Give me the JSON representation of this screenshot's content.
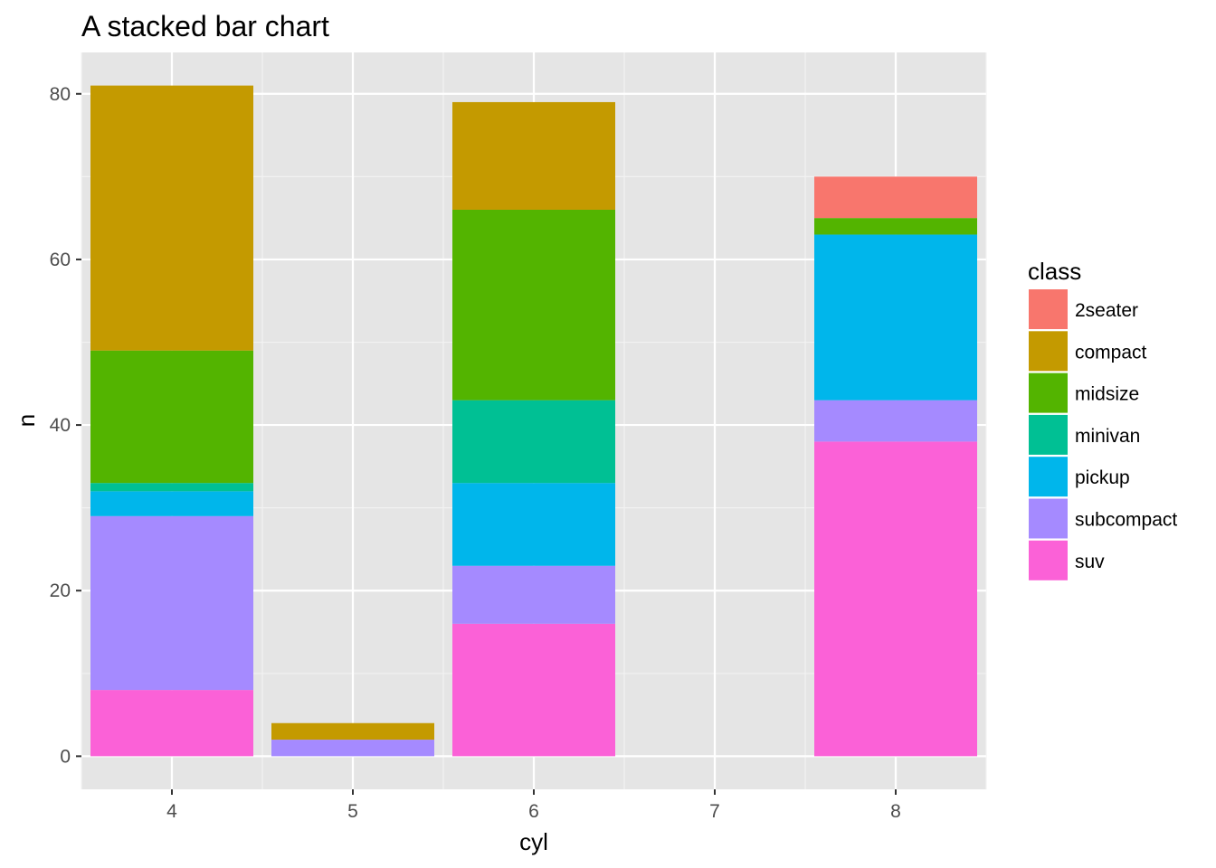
{
  "chart_data": {
    "type": "bar",
    "stacked": true,
    "title": "A stacked bar chart",
    "xlabel": "cyl",
    "ylabel": "n",
    "x_ticks": [
      "4",
      "5",
      "6",
      "7",
      "8"
    ],
    "y_ticks": [
      "0",
      "20",
      "40",
      "60",
      "80"
    ],
    "xlim": [
      3.5,
      8.5
    ],
    "ylim": [
      -4,
      85
    ],
    "grid": true,
    "legend_position": "right",
    "legend_title": "class",
    "series": [
      {
        "name": "2seater",
        "color": "#F8766D",
        "values": [
          {
            "x": 4,
            "y": 0
          },
          {
            "x": 5,
            "y": 0
          },
          {
            "x": 6,
            "y": 0
          },
          {
            "x": 8,
            "y": 5
          }
        ]
      },
      {
        "name": "compact",
        "color": "#C49A00",
        "values": [
          {
            "x": 4,
            "y": 32
          },
          {
            "x": 5,
            "y": 2
          },
          {
            "x": 6,
            "y": 13
          },
          {
            "x": 8,
            "y": 0
          }
        ]
      },
      {
        "name": "midsize",
        "color": "#53B400",
        "values": [
          {
            "x": 4,
            "y": 16
          },
          {
            "x": 5,
            "y": 0
          },
          {
            "x": 6,
            "y": 23
          },
          {
            "x": 8,
            "y": 2
          }
        ]
      },
      {
        "name": "minivan",
        "color": "#00C094",
        "values": [
          {
            "x": 4,
            "y": 1
          },
          {
            "x": 5,
            "y": 0
          },
          {
            "x": 6,
            "y": 10
          },
          {
            "x": 8,
            "y": 0
          }
        ]
      },
      {
        "name": "pickup",
        "color": "#00B6EB",
        "values": [
          {
            "x": 4,
            "y": 3
          },
          {
            "x": 5,
            "y": 0
          },
          {
            "x": 6,
            "y": 10
          },
          {
            "x": 8,
            "y": 20
          }
        ]
      },
      {
        "name": "subcompact",
        "color": "#A58AFF",
        "values": [
          {
            "x": 4,
            "y": 21
          },
          {
            "x": 5,
            "y": 2
          },
          {
            "x": 6,
            "y": 7
          },
          {
            "x": 8,
            "y": 5
          }
        ]
      },
      {
        "name": "suv",
        "color": "#FB61D7",
        "values": [
          {
            "x": 4,
            "y": 8
          },
          {
            "x": 5,
            "y": 0
          },
          {
            "x": 6,
            "y": 16
          },
          {
            "x": 8,
            "y": 38
          }
        ]
      }
    ]
  }
}
